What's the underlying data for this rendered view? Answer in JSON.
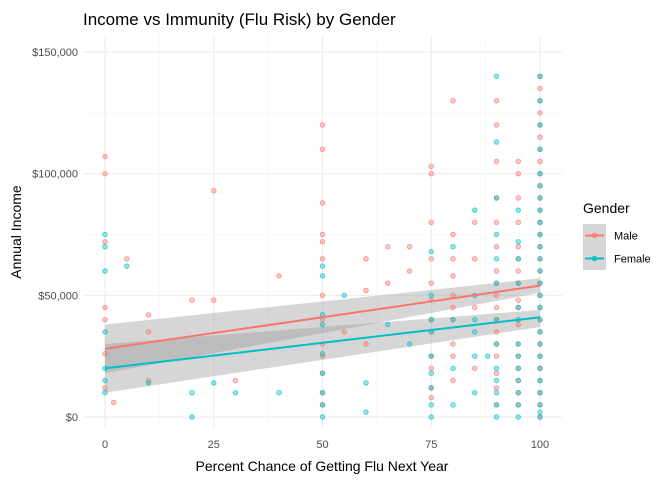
{
  "chart_data": {
    "type": "scatter",
    "title": "Income vs Immunity (Flu Risk) by Gender",
    "xlabel": "Percent Chance of Getting Flu Next Year",
    "ylabel": "Annual Income",
    "xlim": [
      0,
      100
    ],
    "ylim": [
      0,
      150000
    ],
    "x_ticks": [
      0,
      25,
      50,
      75,
      100
    ],
    "x_tick_labels": [
      "0",
      "25",
      "50",
      "75",
      "100"
    ],
    "y_ticks": [
      0,
      50000,
      100000,
      150000
    ],
    "y_tick_labels": [
      "$0",
      "$50,000",
      "$100,000",
      "$150,000"
    ],
    "grid": true,
    "legend": {
      "title": "Gender",
      "position": "right"
    },
    "series": [
      {
        "name": "Male",
        "color": "#F8766D",
        "trend": {
          "x": [
            0,
            100
          ],
          "y": [
            28000,
            54000
          ],
          "ci_low": [
            18000,
            51000
          ],
          "ci_high": [
            38000,
            57000
          ]
        },
        "points": [
          [
            0,
            107000
          ],
          [
            0,
            100000
          ],
          [
            0,
            72000
          ],
          [
            0,
            45000
          ],
          [
            0,
            40000
          ],
          [
            0,
            26000
          ],
          [
            0,
            12000
          ],
          [
            2,
            6000
          ],
          [
            5,
            65000
          ],
          [
            10,
            42000
          ],
          [
            10,
            35000
          ],
          [
            10,
            15000
          ],
          [
            20,
            48000
          ],
          [
            25,
            93000
          ],
          [
            25,
            48000
          ],
          [
            30,
            15000
          ],
          [
            40,
            58000
          ],
          [
            50,
            120000
          ],
          [
            50,
            110000
          ],
          [
            50,
            88000
          ],
          [
            50,
            75000
          ],
          [
            50,
            72000
          ],
          [
            50,
            65000
          ],
          [
            50,
            50000
          ],
          [
            50,
            40000
          ],
          [
            50,
            30000
          ],
          [
            50,
            25000
          ],
          [
            50,
            18000
          ],
          [
            50,
            10000
          ],
          [
            50,
            5000
          ],
          [
            55,
            35000
          ],
          [
            60,
            65000
          ],
          [
            60,
            52000
          ],
          [
            60,
            30000
          ],
          [
            65,
            70000
          ],
          [
            65,
            55000
          ],
          [
            70,
            70000
          ],
          [
            70,
            60000
          ],
          [
            75,
            103000
          ],
          [
            75,
            100000
          ],
          [
            75,
            80000
          ],
          [
            75,
            65000
          ],
          [
            75,
            55000
          ],
          [
            75,
            48000
          ],
          [
            75,
            40000
          ],
          [
            75,
            35000
          ],
          [
            75,
            25000
          ],
          [
            75,
            20000
          ],
          [
            75,
            12000
          ],
          [
            75,
            8000
          ],
          [
            80,
            130000
          ],
          [
            80,
            75000
          ],
          [
            80,
            65000
          ],
          [
            80,
            58000
          ],
          [
            80,
            50000
          ],
          [
            80,
            45000
          ],
          [
            80,
            40000
          ],
          [
            80,
            30000
          ],
          [
            80,
            25000
          ],
          [
            80,
            15000
          ],
          [
            85,
            80000
          ],
          [
            85,
            65000
          ],
          [
            85,
            45000
          ],
          [
            85,
            20000
          ],
          [
            90,
            130000
          ],
          [
            90,
            120000
          ],
          [
            90,
            105000
          ],
          [
            90,
            90000
          ],
          [
            90,
            80000
          ],
          [
            90,
            70000
          ],
          [
            90,
            60000
          ],
          [
            90,
            55000
          ],
          [
            90,
            50000
          ],
          [
            90,
            45000
          ],
          [
            90,
            40000
          ],
          [
            90,
            35000
          ],
          [
            90,
            30000
          ],
          [
            90,
            25000
          ],
          [
            90,
            18000
          ],
          [
            90,
            12000
          ],
          [
            90,
            5000
          ],
          [
            95,
            105000
          ],
          [
            95,
            100000
          ],
          [
            95,
            90000
          ],
          [
            95,
            80000
          ],
          [
            95,
            70000
          ],
          [
            95,
            65000
          ],
          [
            95,
            60000
          ],
          [
            95,
            55000
          ],
          [
            95,
            48000
          ],
          [
            95,
            45000
          ],
          [
            95,
            38000
          ],
          [
            95,
            30000
          ],
          [
            95,
            25000
          ],
          [
            95,
            20000
          ],
          [
            95,
            15000
          ],
          [
            95,
            10000
          ],
          [
            95,
            5000
          ],
          [
            100,
            140000
          ],
          [
            100,
            135000
          ],
          [
            100,
            130000
          ],
          [
            100,
            125000
          ],
          [
            100,
            120000
          ],
          [
            100,
            115000
          ],
          [
            100,
            110000
          ],
          [
            100,
            105000
          ],
          [
            100,
            100000
          ],
          [
            100,
            95000
          ],
          [
            100,
            90000
          ],
          [
            100,
            85000
          ],
          [
            100,
            80000
          ],
          [
            100,
            75000
          ],
          [
            100,
            70000
          ],
          [
            100,
            65000
          ],
          [
            100,
            60000
          ],
          [
            100,
            55000
          ],
          [
            100,
            50000
          ],
          [
            100,
            45000
          ],
          [
            100,
            40000
          ],
          [
            100,
            35000
          ],
          [
            100,
            30000
          ],
          [
            100,
            25000
          ],
          [
            100,
            20000
          ],
          [
            100,
            15000
          ],
          [
            100,
            10000
          ],
          [
            100,
            5000
          ],
          [
            100,
            0
          ]
        ]
      },
      {
        "name": "Female",
        "color": "#00BFC4",
        "trend": {
          "x": [
            0,
            100
          ],
          "y": [
            20000,
            41000
          ],
          "ci_low": [
            10000,
            37000
          ],
          "ci_high": [
            30000,
            44000
          ]
        },
        "points": [
          [
            0,
            75000
          ],
          [
            0,
            70000
          ],
          [
            0,
            60000
          ],
          [
            0,
            35000
          ],
          [
            0,
            20000
          ],
          [
            0,
            15000
          ],
          [
            0,
            10000
          ],
          [
            5,
            62000
          ],
          [
            10,
            14000
          ],
          [
            20,
            10000
          ],
          [
            20,
            0
          ],
          [
            25,
            14000
          ],
          [
            30,
            10000
          ],
          [
            40,
            10000
          ],
          [
            50,
            62000
          ],
          [
            50,
            58000
          ],
          [
            50,
            42000
          ],
          [
            50,
            38000
          ],
          [
            50,
            26000
          ],
          [
            50,
            18000
          ],
          [
            50,
            10000
          ],
          [
            50,
            5000
          ],
          [
            50,
            0
          ],
          [
            55,
            50000
          ],
          [
            60,
            14000
          ],
          [
            60,
            2000
          ],
          [
            65,
            38000
          ],
          [
            70,
            30000
          ],
          [
            75,
            68000
          ],
          [
            75,
            50000
          ],
          [
            75,
            40000
          ],
          [
            75,
            35000
          ],
          [
            75,
            25000
          ],
          [
            75,
            18000
          ],
          [
            75,
            12000
          ],
          [
            75,
            5000
          ],
          [
            75,
            0
          ],
          [
            80,
            70000
          ],
          [
            80,
            40000
          ],
          [
            80,
            20000
          ],
          [
            80,
            5000
          ],
          [
            85,
            85000
          ],
          [
            85,
            50000
          ],
          [
            85,
            40000
          ],
          [
            85,
            35000
          ],
          [
            85,
            25000
          ],
          [
            85,
            10000
          ],
          [
            88,
            25000
          ],
          [
            90,
            140000
          ],
          [
            90,
            113000
          ],
          [
            90,
            90000
          ],
          [
            90,
            75000
          ],
          [
            90,
            65000
          ],
          [
            90,
            55000
          ],
          [
            90,
            40000
          ],
          [
            90,
            30000
          ],
          [
            90,
            20000
          ],
          [
            90,
            15000
          ],
          [
            90,
            10000
          ],
          [
            90,
            5000
          ],
          [
            90,
            0
          ],
          [
            95,
            85000
          ],
          [
            95,
            72000
          ],
          [
            95,
            65000
          ],
          [
            95,
            55000
          ],
          [
            95,
            45000
          ],
          [
            95,
            40000
          ],
          [
            95,
            30000
          ],
          [
            95,
            25000
          ],
          [
            95,
            20000
          ],
          [
            95,
            15000
          ],
          [
            95,
            10000
          ],
          [
            95,
            5000
          ],
          [
            95,
            0
          ],
          [
            100,
            140000
          ],
          [
            100,
            130000
          ],
          [
            100,
            120000
          ],
          [
            100,
            110000
          ],
          [
            100,
            100000
          ],
          [
            100,
            95000
          ],
          [
            100,
            90000
          ],
          [
            100,
            85000
          ],
          [
            100,
            80000
          ],
          [
            100,
            75000
          ],
          [
            100,
            70000
          ],
          [
            100,
            65000
          ],
          [
            100,
            60000
          ],
          [
            100,
            55000
          ],
          [
            100,
            50000
          ],
          [
            100,
            45000
          ],
          [
            100,
            40000
          ],
          [
            100,
            35000
          ],
          [
            100,
            30000
          ],
          [
            100,
            25000
          ],
          [
            100,
            20000
          ],
          [
            100,
            15000
          ],
          [
            100,
            10000
          ],
          [
            100,
            5000
          ],
          [
            100,
            2000
          ],
          [
            100,
            0
          ]
        ]
      }
    ]
  }
}
